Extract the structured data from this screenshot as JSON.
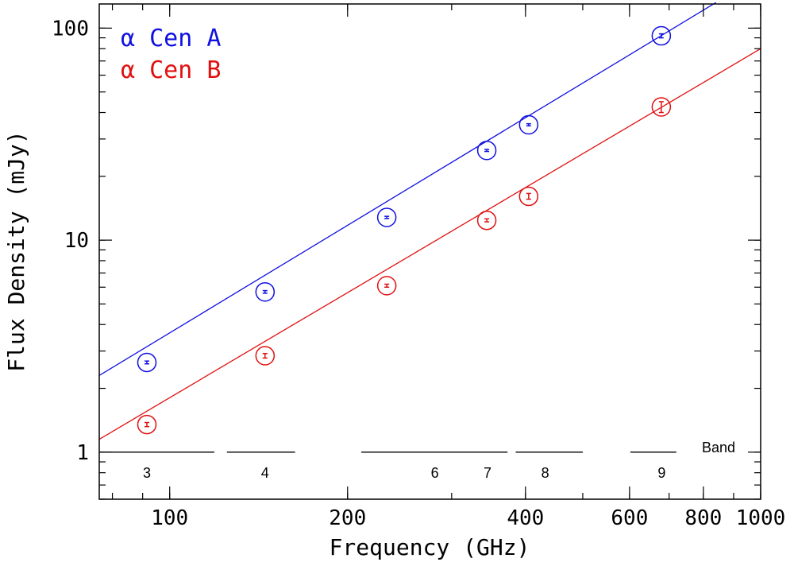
{
  "chart_data": {
    "type": "scatter",
    "xscale": "log",
    "yscale": "log",
    "xlim": [
      76,
      1000
    ],
    "ylim": [
      0.6,
      130
    ],
    "xlabel": "Frequency (GHz)",
    "ylabel": "Flux Density (mJy)",
    "xticks": [
      100,
      200,
      400,
      600,
      800,
      1000
    ],
    "xtick_labels": [
      "100",
      "200",
      "400",
      "600",
      "800",
      "1000"
    ],
    "yticks": [
      1,
      10,
      100
    ],
    "ytick_labels": [
      "1",
      "10",
      "100"
    ],
    "legend_position": "top-left",
    "series": [
      {
        "name": "Cen A",
        "label_symbol": "α",
        "color": "#1010e0",
        "points": [
          {
            "x": 91.5,
            "y": 2.65,
            "err": 0.04
          },
          {
            "x": 145,
            "y": 5.7,
            "err": 0.08
          },
          {
            "x": 233,
            "y": 12.8,
            "err": 0.15
          },
          {
            "x": 344,
            "y": 26.5,
            "err": 0.3
          },
          {
            "x": 405,
            "y": 35.0,
            "err": 0.4
          },
          {
            "x": 679,
            "y": 92.0,
            "err": 2.0
          }
        ],
        "fit": {
          "x": [
            76,
            840
          ],
          "y": [
            2.3,
            132
          ]
        }
      },
      {
        "name": "Cen B",
        "label_symbol": "α",
        "color": "#e01010",
        "points": [
          {
            "x": 91.5,
            "y": 1.35,
            "err": 0.03
          },
          {
            "x": 145,
            "y": 2.85,
            "err": 0.07
          },
          {
            "x": 233,
            "y": 6.1,
            "err": 0.1
          },
          {
            "x": 344,
            "y": 12.4,
            "err": 0.2
          },
          {
            "x": 405,
            "y": 16.1,
            "err": 0.5
          },
          {
            "x": 679,
            "y": 42.5,
            "err": 2.5
          }
        ],
        "fit": {
          "x": [
            76,
            1000
          ],
          "y": [
            1.15,
            80
          ]
        }
      }
    ],
    "bands": [
      {
        "label": "3",
        "x": [
          76,
          119
        ],
        "label_x": 91.5
      },
      {
        "label": "4",
        "x": [
          125,
          163
        ],
        "label_x": 145
      },
      {
        "label": "6",
        "x": [
          211,
          373
        ],
        "label_x": 281
      },
      {
        "label": "7",
        "x": [
          211,
          373
        ],
        "label_x": 345
      },
      {
        "label": "8",
        "x": [
          385,
          500
        ],
        "label_x": 432
      },
      {
        "label": "9",
        "x": [
          602,
          720
        ],
        "label_x": 680
      }
    ],
    "band_title": "Band",
    "band_level": 1.0
  }
}
